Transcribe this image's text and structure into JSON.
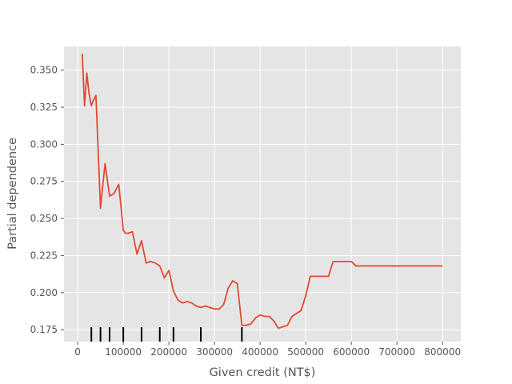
{
  "chart_data": {
    "type": "line",
    "title": "",
    "xlabel": "Given credit (NT$)",
    "ylabel": "Partial dependence",
    "xlim": [
      -30000,
      840000
    ],
    "ylim": [
      0.167,
      0.366
    ],
    "grid": true,
    "x_ticks": [
      0,
      100000,
      200000,
      300000,
      400000,
      500000,
      600000,
      700000,
      800000
    ],
    "x_tick_labels": [
      "0",
      "100000",
      "200000",
      "300000",
      "400000",
      "500000",
      "600000",
      "700000",
      "800000"
    ],
    "y_ticks": [
      0.175,
      0.2,
      0.225,
      0.25,
      0.275,
      0.3,
      0.325,
      0.35
    ],
    "y_tick_labels": [
      "0.175",
      "0.200",
      "0.225",
      "0.250",
      "0.275",
      "0.300",
      "0.325",
      "0.350"
    ],
    "line_color": "#E24A33",
    "series": [
      {
        "x": [
          10000,
          15000,
          20000,
          25000,
          30000,
          35000,
          40000,
          45000,
          50000,
          60000,
          70000,
          80000,
          90000,
          95000,
          100000,
          105000,
          110000,
          120000,
          130000,
          140000,
          150000,
          160000,
          170000,
          180000,
          190000,
          200000,
          210000,
          220000,
          230000,
          240000,
          250000,
          260000,
          270000,
          280000,
          290000,
          300000,
          310000,
          320000,
          330000,
          340000,
          350000,
          360000,
          370000,
          380000,
          390000,
          400000,
          410000,
          420000,
          430000,
          440000,
          450000,
          460000,
          470000,
          480000,
          490000,
          500000,
          510000,
          520000,
          530000,
          540000,
          550000,
          560000,
          570000,
          580000,
          590000,
          600000,
          610000,
          620000,
          630000,
          640000,
          650000,
          700000,
          750000,
          800000
        ],
        "values": [
          0.361,
          0.326,
          0.348,
          0.334,
          0.326,
          0.33,
          0.333,
          0.295,
          0.257,
          0.287,
          0.265,
          0.267,
          0.273,
          0.258,
          0.242,
          0.24,
          0.24,
          0.241,
          0.226,
          0.235,
          0.22,
          0.221,
          0.22,
          0.218,
          0.21,
          0.215,
          0.201,
          0.195,
          0.193,
          0.194,
          0.193,
          0.191,
          0.19,
          0.191,
          0.19,
          0.189,
          0.189,
          0.192,
          0.203,
          0.208,
          0.206,
          0.178,
          0.178,
          0.179,
          0.183,
          0.185,
          0.184,
          0.184,
          0.181,
          0.176,
          0.177,
          0.178,
          0.184,
          0.186,
          0.188,
          0.198,
          0.211,
          0.211,
          0.211,
          0.211,
          0.211,
          0.221,
          0.221,
          0.221,
          0.221,
          0.221,
          0.218,
          0.218,
          0.218,
          0.218,
          0.218,
          0.218,
          0.218,
          0.218
        ]
      }
    ],
    "rug_x": [
      30000,
      50000,
      70000,
      100000,
      140000,
      180000,
      210000,
      270000,
      360000
    ]
  }
}
